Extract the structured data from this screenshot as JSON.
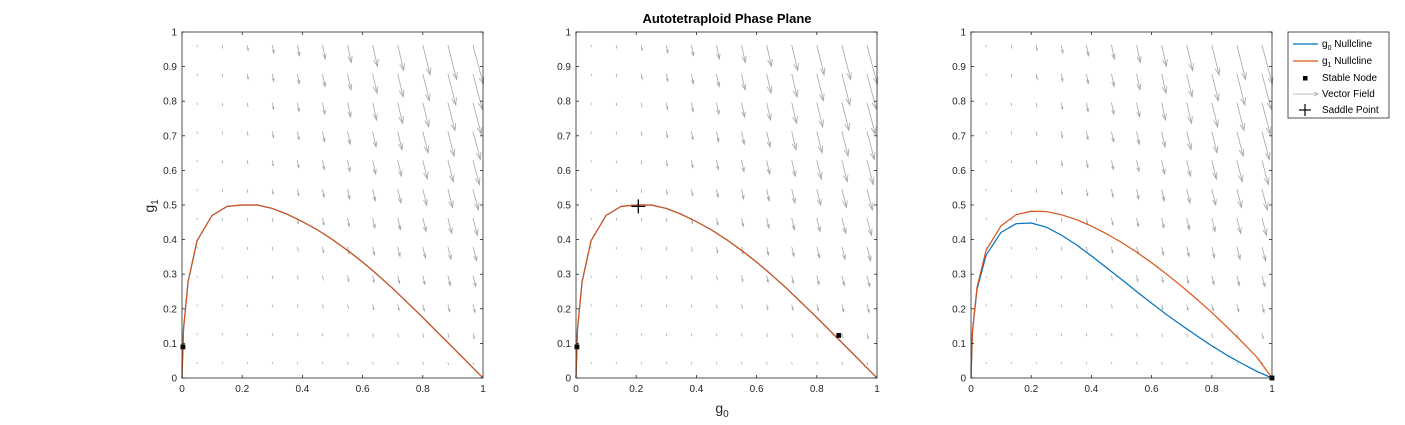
{
  "figure": {
    "title": "Autotetraploid Phase Plane",
    "xlabel": {
      "main": "g",
      "sub": "0"
    },
    "ylabel": {
      "main": "g",
      "sub": "1"
    }
  },
  "colors": {
    "g0_nullcline": "#0072BD",
    "g1_nullcline": "#D95319",
    "vector_field": "#a6a6a6",
    "points": "#000000",
    "axes": "#262626"
  },
  "legend": {
    "placement": "top-right",
    "entries": [
      {
        "key": "g0",
        "main": "g",
        "sub": "0",
        "text": " Nullcline"
      },
      {
        "key": "g1",
        "main": "g",
        "sub": "1",
        "text": " Nullcline"
      },
      {
        "key": "stable",
        "text": "Stable Node"
      },
      {
        "key": "vector",
        "text": "Vector Field"
      },
      {
        "key": "saddle",
        "text": "Saddle Point"
      }
    ]
  },
  "chart_data": [
    {
      "type": "line",
      "xlim": [
        0,
        1
      ],
      "ylim": [
        0,
        1
      ],
      "xticks": [
        "0",
        "0.2",
        "0.4",
        "0.6",
        "0.8",
        "1"
      ],
      "yticks": [
        "0",
        "0.1",
        "0.2",
        "0.3",
        "0.4",
        "0.5",
        "0.6",
        "0.7",
        "0.8",
        "0.9",
        "1"
      ],
      "show_ylabel": true,
      "series": [
        {
          "key": "g0",
          "x": [
            0,
            0.005,
            0.02,
            0.05,
            0.1,
            0.15,
            0.2,
            0.25,
            0.3,
            0.35,
            0.4,
            0.45,
            0.5,
            0.55,
            0.6,
            0.65,
            0.7,
            0.75,
            0.8,
            0.85,
            0.9,
            0.95,
            1
          ],
          "y": [
            0,
            0.141,
            0.277,
            0.397,
            0.47,
            0.496,
            0.5,
            0.5,
            0.49,
            0.473,
            0.452,
            0.428,
            0.4,
            0.369,
            0.335,
            0.298,
            0.259,
            0.217,
            0.175,
            0.131,
            0.088,
            0.044,
            0
          ]
        },
        {
          "key": "g1",
          "x": [
            0,
            0.005,
            0.02,
            0.05,
            0.1,
            0.15,
            0.2,
            0.25,
            0.3,
            0.35,
            0.4,
            0.45,
            0.5,
            0.55,
            0.6,
            0.65,
            0.7,
            0.75,
            0.8,
            0.85,
            0.9,
            0.95,
            1
          ],
          "y": [
            0,
            0.141,
            0.277,
            0.397,
            0.47,
            0.496,
            0.5,
            0.5,
            0.49,
            0.473,
            0.452,
            0.428,
            0.4,
            0.369,
            0.335,
            0.298,
            0.259,
            0.217,
            0.175,
            0.131,
            0.088,
            0.044,
            0
          ]
        }
      ],
      "stable_nodes": [
        {
          "x": 0.003,
          "y": 0.09
        }
      ],
      "saddle_points": []
    },
    {
      "type": "line",
      "xlim": [
        0,
        1
      ],
      "ylim": [
        0,
        1
      ],
      "xticks": [
        "0",
        "0.2",
        "0.4",
        "0.6",
        "0.8",
        "1"
      ],
      "yticks": [
        "0",
        "0.1",
        "0.2",
        "0.3",
        "0.4",
        "0.5",
        "0.6",
        "0.7",
        "0.8",
        "0.9",
        "1"
      ],
      "show_xlabel": true,
      "show_title": true,
      "series": [
        {
          "key": "g0",
          "x": [
            0,
            0.005,
            0.02,
            0.05,
            0.1,
            0.15,
            0.2,
            0.25,
            0.3,
            0.35,
            0.4,
            0.45,
            0.5,
            0.55,
            0.6,
            0.65,
            0.7,
            0.75,
            0.8,
            0.85,
            0.9,
            0.95,
            1
          ],
          "y": [
            0,
            0.141,
            0.277,
            0.397,
            0.47,
            0.496,
            0.5,
            0.5,
            0.49,
            0.473,
            0.452,
            0.428,
            0.4,
            0.369,
            0.335,
            0.298,
            0.259,
            0.217,
            0.175,
            0.131,
            0.088,
            0.044,
            0
          ]
        },
        {
          "key": "g1",
          "x": [
            0,
            0.005,
            0.02,
            0.05,
            0.1,
            0.15,
            0.2,
            0.25,
            0.3,
            0.35,
            0.4,
            0.45,
            0.5,
            0.55,
            0.6,
            0.65,
            0.7,
            0.75,
            0.8,
            0.85,
            0.9,
            0.95,
            1
          ],
          "y": [
            0,
            0.141,
            0.277,
            0.397,
            0.47,
            0.496,
            0.5,
            0.5,
            0.49,
            0.473,
            0.452,
            0.428,
            0.4,
            0.369,
            0.335,
            0.298,
            0.259,
            0.217,
            0.175,
            0.131,
            0.088,
            0.044,
            0
          ]
        }
      ],
      "stable_nodes": [
        {
          "x": 0.003,
          "y": 0.09
        },
        {
          "x": 0.873,
          "y": 0.123
        }
      ],
      "saddle_points": [
        {
          "x": 0.207,
          "y": 0.496
        }
      ]
    },
    {
      "type": "line",
      "xlim": [
        0,
        1
      ],
      "ylim": [
        0,
        1
      ],
      "xticks": [
        "0",
        "0.2",
        "0.4",
        "0.6",
        "0.8",
        "1"
      ],
      "yticks": [
        "0",
        "0.1",
        "0.2",
        "0.3",
        "0.4",
        "0.5",
        "0.6",
        "0.7",
        "0.8",
        "0.9",
        "1"
      ],
      "series": [
        {
          "key": "g0",
          "x": [
            0,
            0.005,
            0.02,
            0.05,
            0.1,
            0.15,
            0.2,
            0.25,
            0.3,
            0.35,
            0.4,
            0.45,
            0.5,
            0.55,
            0.6,
            0.65,
            0.7,
            0.75,
            0.8,
            0.85,
            0.9,
            0.95,
            1
          ],
          "y": [
            0,
            0.135,
            0.256,
            0.355,
            0.421,
            0.446,
            0.448,
            0.436,
            0.413,
            0.385,
            0.353,
            0.319,
            0.285,
            0.25,
            0.216,
            0.183,
            0.152,
            0.122,
            0.093,
            0.066,
            0.042,
            0.019,
            0
          ]
        },
        {
          "key": "g1",
          "x": [
            0,
            0.005,
            0.02,
            0.05,
            0.1,
            0.15,
            0.2,
            0.25,
            0.3,
            0.35,
            0.4,
            0.45,
            0.5,
            0.55,
            0.6,
            0.65,
            0.7,
            0.75,
            0.8,
            0.85,
            0.9,
            0.95,
            1
          ],
          "y": [
            0,
            0.138,
            0.262,
            0.369,
            0.44,
            0.472,
            0.482,
            0.481,
            0.472,
            0.458,
            0.439,
            0.417,
            0.392,
            0.364,
            0.333,
            0.3,
            0.265,
            0.228,
            0.189,
            0.148,
            0.105,
            0.06,
            0
          ]
        }
      ],
      "stable_nodes": [
        {
          "x": 1,
          "y": 0
        }
      ],
      "saddle_points": []
    }
  ]
}
